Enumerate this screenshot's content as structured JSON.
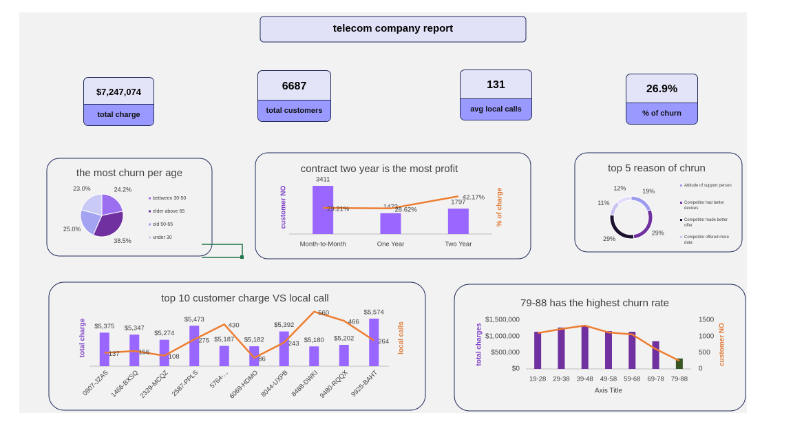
{
  "header": {
    "title": "telecom company report"
  },
  "kpis": [
    {
      "value": "$7,247,074",
      "label": "total charge"
    },
    {
      "value": "6687",
      "label": "total customers"
    },
    {
      "value": "131",
      "label": "avg local calls"
    },
    {
      "value": "26.9%",
      "label": "% of churn"
    }
  ],
  "chart_data": [
    {
      "type": "pie",
      "title": "the most churn per age",
      "categories": [
        "bettween 30-50",
        "elder above 65",
        "old 50-65",
        "under 30"
      ],
      "values": [
        24.2,
        38.5,
        25.0,
        23.0
      ],
      "value_labels": [
        "24.2%",
        "38.5%",
        "25.0%",
        "23.0%"
      ],
      "colors": [
        "#9b6ff0",
        "#7030a0",
        "#a3a3f2",
        "#cacaf6"
      ]
    },
    {
      "type": "combo",
      "title": "contract two year is the most profit",
      "categories": [
        "Month-to-Month",
        "One Year",
        "Two Year"
      ],
      "ylabel": "customer NO",
      "y2label": "% of charge",
      "ylim": [
        0,
        3800
      ],
      "y2lim": [
        0,
        60
      ],
      "series": [
        {
          "type": "bar",
          "color": "#9966ff",
          "values": [
            3411,
            1473,
            1797
          ],
          "data_labels": true
        },
        {
          "type": "line",
          "axis": "y2",
          "color": "#ed7d31",
          "values": [
            29.21,
            28.62,
            42.17
          ],
          "value_labels": [
            "29.21%",
            "28.62%",
            "42.17%"
          ],
          "data_labels": true
        }
      ]
    },
    {
      "type": "doughnut",
      "title": "top 5 reason of chrun",
      "categories": [
        "Attitude of support person",
        "Competitor had better devices",
        "Competitor made better offer",
        "Competitor offered more data",
        null
      ],
      "values": [
        19,
        29,
        29,
        11,
        12
      ],
      "value_labels": [
        "19%",
        "29%",
        "29%",
        "11%",
        "12%"
      ],
      "colors": [
        "#9c9cee",
        "#7030a0",
        "#1c1230",
        "#c9c3f0",
        "#e4dcf8"
      ]
    },
    {
      "type": "combo",
      "title": "top 10 customer charge VS local call",
      "categories": [
        "0907-JZAS",
        "1466-BXSQ",
        "2329-MCQZ",
        "2587-PPLS",
        "5764-...",
        "6069-HDMO",
        "8044-UXPB",
        "8488-DWKI",
        "9480-RQQX",
        "9925-BAHT"
      ],
      "ylabel": "total charge",
      "y2label": "local calls",
      "ylim": [
        4900,
        5700
      ],
      "y2lim": [
        0,
        580
      ],
      "series": [
        {
          "type": "bar",
          "color": "#9966ff",
          "values": [
            5375,
            5347,
            5274,
            5473,
            5187,
            5182,
            5392,
            5180,
            5202,
            5574
          ],
          "value_labels": [
            "$5,375",
            "$5,347",
            "$5,274",
            "$5,473",
            "$5,187",
            "$5,182",
            "$5,392",
            "$5,180",
            "$5,202",
            "$5,574"
          ],
          "data_labels": true
        },
        {
          "type": "line",
          "axis": "y2",
          "color": "#ed7d31",
          "values": [
            137,
            156,
            108,
            275,
            430,
            86,
            243,
            560,
            466,
            264
          ],
          "data_labels": true
        }
      ]
    },
    {
      "type": "combo",
      "title": "79-88 has the highest churn rate",
      "categories": [
        "19-28",
        "29-38",
        "39-48",
        "49-58",
        "59-68",
        "69-78",
        "79-88"
      ],
      "xlabel": "Axis Title",
      "ylabel": "total charges",
      "y2label": "customer NO",
      "ylim": [
        0,
        1500000
      ],
      "yticks": [
        {
          "value": 0,
          "label": "$0"
        },
        {
          "value": 500000,
          "label": "$500,000"
        },
        {
          "value": 1000000,
          "label": "$1,000,000"
        },
        {
          "value": 1500000,
          "label": "$1,500,000"
        }
      ],
      "y2lim": [
        0,
        1500
      ],
      "y2ticks": [
        0,
        500,
        1000,
        1500
      ],
      "series": [
        {
          "type": "bar",
          "color": "#7030a0",
          "colors": [
            "#7030a0",
            "#7030a0",
            "#7030a0",
            "#7030a0",
            "#7030a0",
            "#7030a0",
            "#375623"
          ],
          "values": [
            1140000,
            1270000,
            1310000,
            1160000,
            1140000,
            850000,
            320000
          ]
        },
        {
          "type": "line",
          "axis": "y2",
          "color": "#ed7d31",
          "values": [
            1100,
            1225,
            1330,
            1120,
            1060,
            610,
            250
          ]
        }
      ]
    }
  ]
}
